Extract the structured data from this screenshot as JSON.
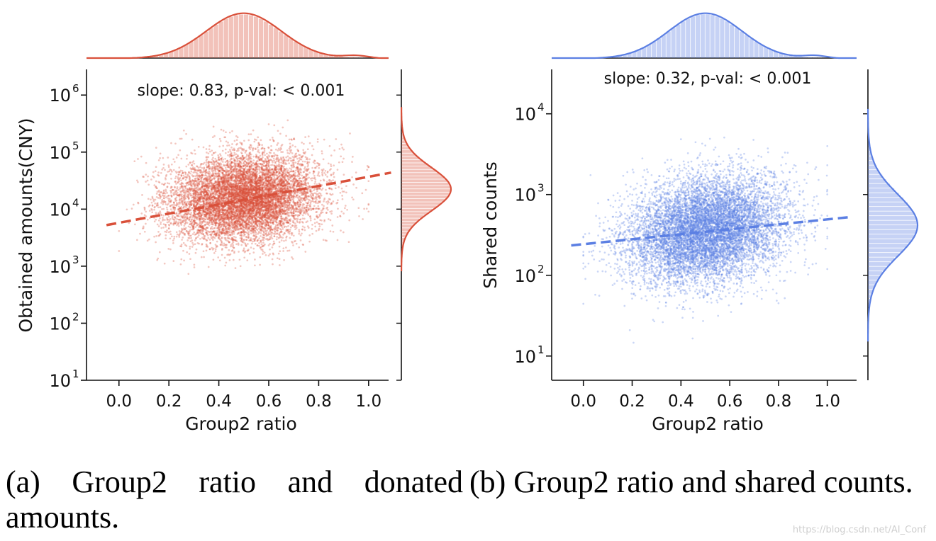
{
  "figure": {
    "watermark": "https://blog.csdn.net/AI_Conf"
  },
  "chart_data": [
    {
      "type": "scatter",
      "panel": "a",
      "caption": "(a) Group2 ratio and donated amounts.",
      "annotation": "slope: 0.83, p-val: < 0.001",
      "xlabel": "Group2 ratio",
      "ylabel": "Obtained amounts(CNY)",
      "color": "#d9503a",
      "xlim": [
        -0.13,
        1.08
      ],
      "x_ticks": [
        0.0,
        0.2,
        0.4,
        0.6,
        0.8,
        1.0
      ],
      "x_tick_labels": [
        "0.0",
        "0.2",
        "0.4",
        "0.6",
        "0.8",
        "1.0"
      ],
      "yscale": "log",
      "ylim_log10": [
        1.0,
        6.45
      ],
      "y_ticks_log10": [
        1,
        2,
        3,
        4,
        5,
        6
      ],
      "y_tick_labels": [
        "10",
        "10",
        "10",
        "10",
        "10",
        "10"
      ],
      "y_tick_exponents": [
        "1",
        "2",
        "3",
        "4",
        "5",
        "6"
      ],
      "regression_line": {
        "x": [
          -0.05,
          1.09
        ],
        "log10_y": [
          3.72,
          4.64
        ]
      },
      "point_cloud": {
        "center_x": 0.5,
        "spread_x": 0.15,
        "center_log10_y": 4.2,
        "spread_log10_y": 0.38,
        "n_points_rendered": 9000
      },
      "x_marginal_peak": 0.5,
      "y_marginal_peak_log10": 4.35
    },
    {
      "type": "scatter",
      "panel": "b",
      "caption": "(b) Group2 ratio and shared counts.",
      "annotation": "slope: 0.32, p-val: < 0.001",
      "xlabel": "Group2 ratio",
      "ylabel": "Shared counts",
      "color": "#5b7fe3",
      "xlim": [
        -0.13,
        1.12
      ],
      "x_ticks": [
        0.0,
        0.2,
        0.4,
        0.6,
        0.8,
        1.0
      ],
      "x_tick_labels": [
        "0.0",
        "0.2",
        "0.4",
        "0.6",
        "0.8",
        "1.0"
      ],
      "yscale": "log",
      "ylim_log10": [
        0.7,
        4.55
      ],
      "y_ticks_log10": [
        1,
        2,
        3,
        4
      ],
      "y_tick_labels": [
        "10",
        "10",
        "10",
        "10"
      ],
      "y_tick_exponents": [
        "1",
        "2",
        "3",
        "4"
      ],
      "regression_line": {
        "x": [
          -0.05,
          1.09
        ],
        "log10_y": [
          2.37,
          2.72
        ]
      },
      "point_cloud": {
        "center_x": 0.5,
        "spread_x": 0.16,
        "center_log10_y": 2.55,
        "spread_log10_y": 0.33,
        "n_points_rendered": 9000
      },
      "x_marginal_peak": 0.5,
      "y_marginal_peak_log10": 2.62
    }
  ]
}
